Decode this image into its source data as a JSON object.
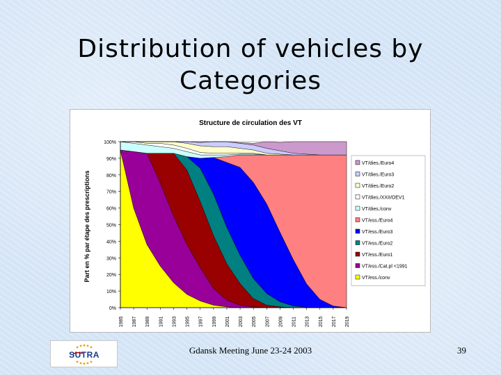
{
  "slide": {
    "title_line1": "Distribution of vehicles by",
    "title_line2": "Categories",
    "footer": "Gdansk Meeting June 23-24 2003",
    "page_number": "39",
    "logo_text": "SUTRA"
  },
  "chart_data": {
    "type": "area",
    "stacked": true,
    "title": "Structure de circulation des VT",
    "ylabel": "Part en % par étape des prescriptions",
    "xlabel": "",
    "ylim": [
      0,
      100
    ],
    "yticks": [
      "0%",
      "10%",
      "20%",
      "30%",
      "40%",
      "50%",
      "60%",
      "70%",
      "80%",
      "90%",
      "100%"
    ],
    "x": [
      1985,
      1987,
      1989,
      1991,
      1993,
      1995,
      1997,
      1999,
      2001,
      2003,
      2005,
      2007,
      2009,
      2011,
      2013,
      2015,
      2017,
      2019
    ],
    "legend_position": "right",
    "series": [
      {
        "name": "VT/ess./conv",
        "color": "#ffff00",
        "values": [
          95,
          60,
          38,
          25,
          15,
          8,
          4,
          1.5,
          0.5,
          0,
          0,
          0,
          0,
          0,
          0,
          0,
          0,
          0
        ]
      },
      {
        "name": "VT/ess./Cat.pl <1991",
        "color": "#990099",
        "values": [
          0,
          34,
          55,
          50,
          40,
          30,
          20,
          10,
          4,
          1.5,
          0.5,
          0,
          0,
          0,
          0,
          0,
          0,
          0
        ]
      },
      {
        "name": "VT/ess./Euro1",
        "color": "#990000",
        "values": [
          0,
          0,
          0,
          18,
          38,
          45,
          40,
          32,
          22,
          13,
          5,
          1.5,
          0.5,
          0,
          0,
          0,
          0,
          0
        ]
      },
      {
        "name": "VT/ess./Euro2",
        "color": "#008080",
        "values": [
          0,
          0,
          0,
          0,
          0,
          8,
          20,
          25,
          22,
          17,
          12,
          7,
          3,
          1,
          0.3,
          0,
          0,
          0
        ]
      },
      {
        "name": "VT/ess./Euro3",
        "color": "#0000ff",
        "values": [
          0,
          0,
          0,
          0,
          0,
          0,
          6,
          22,
          39,
          53,
          58,
          54,
          42,
          28,
          14,
          5,
          1,
          0
        ]
      },
      {
        "name": "VT/ess./Euro4",
        "color": "#ff8080",
        "values": [
          0,
          0,
          0,
          0,
          0,
          0,
          0,
          0,
          3.5,
          7.5,
          16.5,
          29.5,
          46.5,
          63,
          77.7,
          87,
          91,
          92
        ]
      },
      {
        "name": "VT/dies./conv",
        "color": "#ccffff",
        "values": [
          5,
          5,
          5,
          4,
          3,
          3,
          2,
          1.5,
          1,
          0.5,
          0.5,
          0,
          0,
          0,
          0,
          0,
          0,
          0
        ]
      },
      {
        "name": "VT/dies./XXII/OEV1",
        "color": "#ffffff",
        "values": [
          0,
          1,
          1,
          2,
          2,
          2,
          1.5,
          1,
          1,
          0.5,
          0.5,
          0,
          0,
          0,
          0,
          0,
          0,
          0
        ]
      },
      {
        "name": "VT/dies./Euro2",
        "color": "#ffffcc",
        "values": [
          0,
          0,
          1,
          1,
          2,
          3,
          4,
          4,
          4,
          3,
          2,
          1,
          0.5,
          0,
          0,
          0,
          0,
          0
        ]
      },
      {
        "name": "VT/dies./Euro3",
        "color": "#ccccff",
        "values": [
          0,
          0,
          0,
          0,
          0,
          1,
          2,
          3,
          3,
          3,
          3,
          3,
          2,
          1,
          0.5,
          0,
          0,
          0
        ]
      },
      {
        "name": "VT/dies./Euro4",
        "color": "#cc99cc",
        "values": [
          0,
          0,
          0,
          0,
          0,
          0,
          0.5,
          0,
          0,
          0.5,
          1,
          4,
          5,
          7,
          7.5,
          8,
          8,
          8
        ]
      }
    ]
  }
}
